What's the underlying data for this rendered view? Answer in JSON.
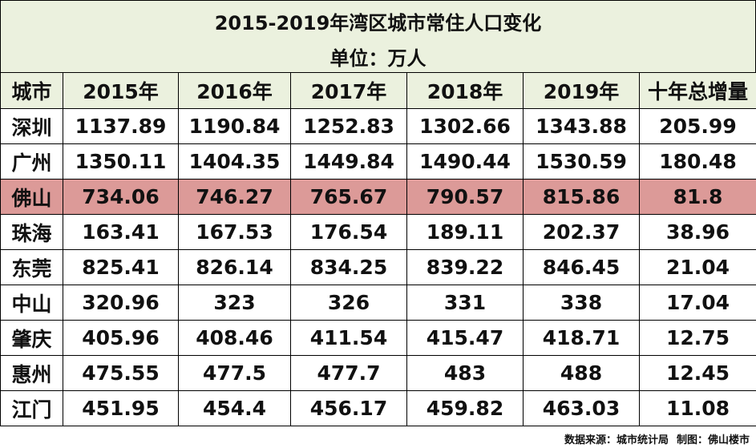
{
  "header": {
    "title": "2015-2019年湾区城市常住人口变化",
    "unit": "单位：万人"
  },
  "table": {
    "columns": [
      "城市",
      "2015年",
      "2016年",
      "2017年",
      "2018年",
      "2019年",
      "十年总增量"
    ],
    "rows": [
      [
        "深圳",
        "1137.89",
        "1190.84",
        "1252.83",
        "1302.66",
        "1343.88",
        "205.99"
      ],
      [
        "广州",
        "1350.11",
        "1404.35",
        "1449.84",
        "1490.44",
        "1530.59",
        "180.48"
      ],
      [
        "佛山",
        "734.06",
        "746.27",
        "765.67",
        "790.57",
        "815.86",
        "81.8"
      ],
      [
        "珠海",
        "163.41",
        "167.53",
        "176.54",
        "189.11",
        "202.37",
        "38.96"
      ],
      [
        "东莞",
        "825.41",
        "826.14",
        "834.25",
        "839.22",
        "846.45",
        "21.04"
      ],
      [
        "中山",
        "320.96",
        "323",
        "326",
        "331",
        "338",
        "17.04"
      ],
      [
        "肇庆",
        "405.96",
        "408.46",
        "411.54",
        "415.47",
        "418.71",
        "12.75"
      ],
      [
        "惠州",
        "475.55",
        "477.5",
        "477.7",
        "483",
        "488",
        "12.45"
      ],
      [
        "江门",
        "451.95",
        "454.4",
        "456.17",
        "459.82",
        "463.03",
        "11.08"
      ]
    ]
  },
  "footer": {
    "source": "数据来源：城市统计局",
    "author": "制图：佛山楼市"
  }
}
